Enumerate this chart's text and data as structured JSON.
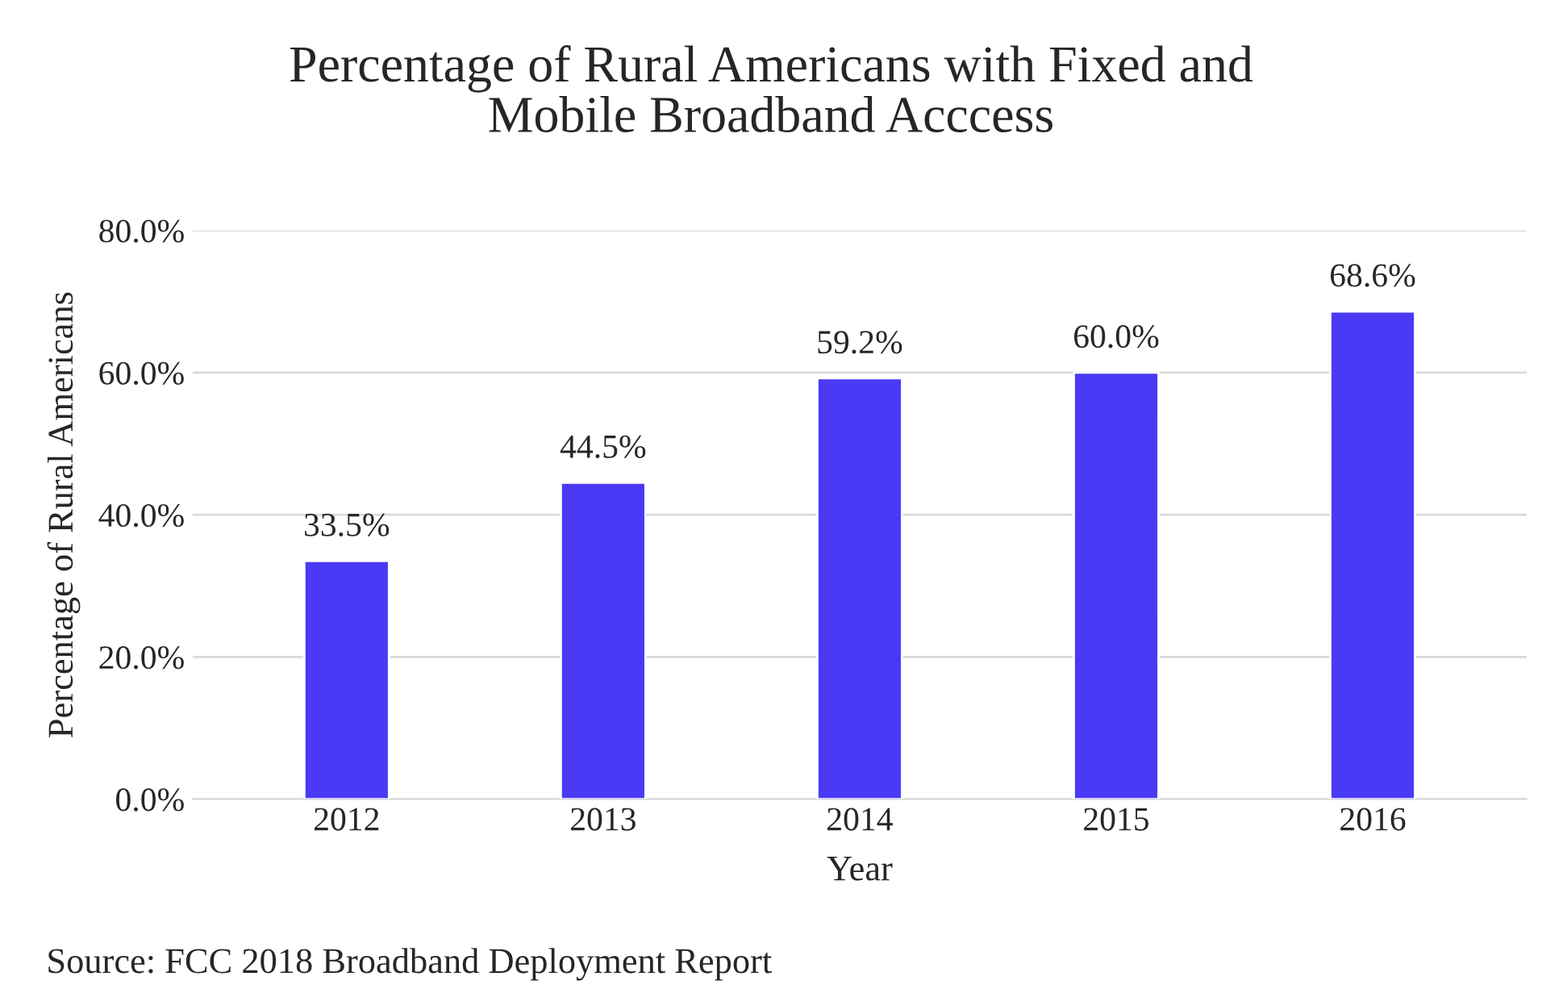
{
  "chart_data": {
    "type": "bar",
    "title": "Percentage of Rural Americans with Fixed and\nMobile Broadband Acccess",
    "xlabel": "Year",
    "ylabel": "Percentage of Rural Americans",
    "categories": [
      "2012",
      "2013",
      "2014",
      "2015",
      "2016"
    ],
    "values": [
      33.5,
      44.5,
      59.2,
      60.0,
      68.6
    ],
    "value_labels": [
      "33.5%",
      "44.5%",
      "59.2%",
      "60.0%",
      "68.6%"
    ],
    "color": "#4a3af5",
    "ylim": [
      0,
      80
    ],
    "yticks": [
      {
        "value": 0,
        "label": "0.0%"
      },
      {
        "value": 20,
        "label": "20.0%"
      },
      {
        "value": 40,
        "label": "40.0%"
      },
      {
        "value": 60,
        "label": "60.0%"
      },
      {
        "value": 80,
        "label": "80.0%"
      }
    ],
    "grid": "y",
    "annotations": [
      "Source: FCC 2018 Broadband Deployment Report"
    ]
  }
}
